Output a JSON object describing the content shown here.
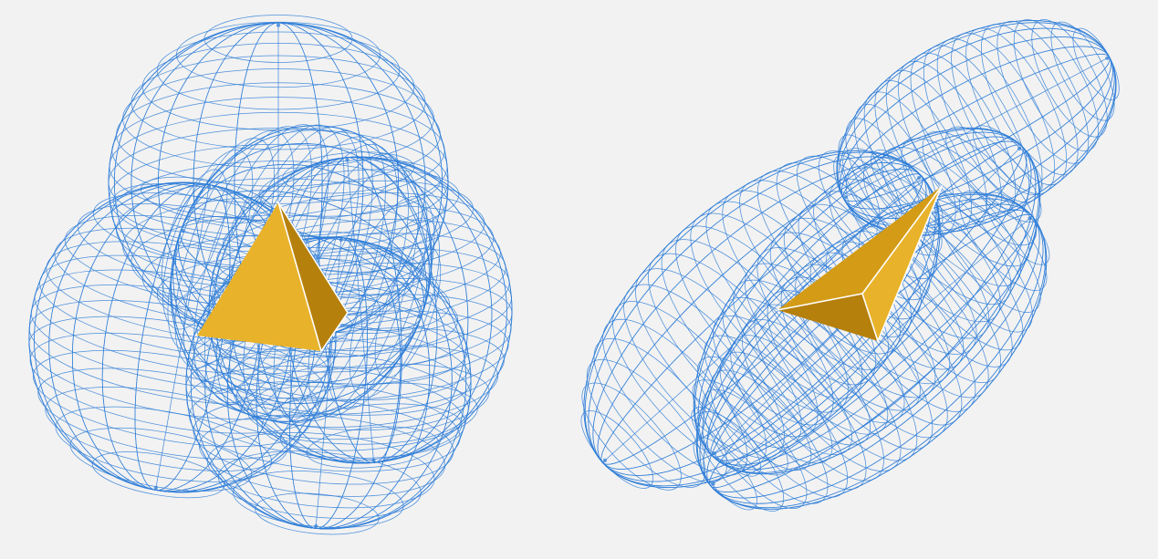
{
  "figure": {
    "panels": [
      {
        "id": "left",
        "label": "",
        "ellipsoid_count": 5,
        "core_shape": "tetrahedron"
      },
      {
        "id": "right",
        "label": "",
        "ellipsoid_count": 4,
        "core_shape": "tetrahedron"
      }
    ]
  },
  "colors": {
    "background": "#f2f2f2",
    "wireframe": "#2f7ed8",
    "face_light": "#e8b22a",
    "face_mid": "#d39b16",
    "face_dark": "#b6800c",
    "edge_highlight": "#ffffff"
  }
}
